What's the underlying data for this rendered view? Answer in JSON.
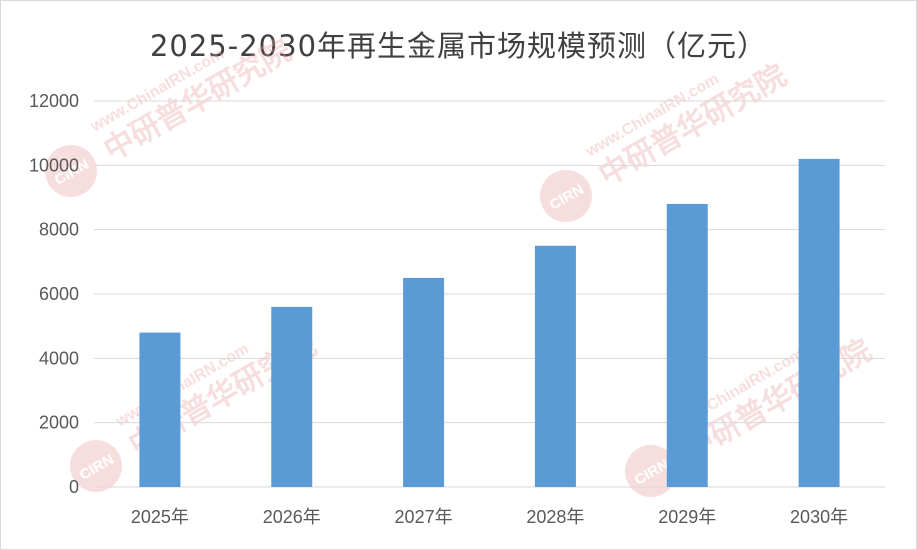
{
  "chart_data": {
    "type": "bar",
    "title": "2025-2030年再生金属市场规模预测（亿元）",
    "categories": [
      "2025年",
      "2026年",
      "2027年",
      "2028年",
      "2029年",
      "2030年"
    ],
    "values": [
      4800,
      5600,
      6500,
      7500,
      8800,
      10200
    ],
    "ylim": [
      0,
      12000
    ],
    "yticks": [
      0,
      2000,
      4000,
      6000,
      8000,
      10000,
      12000
    ],
    "xlabel": "",
    "ylabel": "",
    "grid": true,
    "legend": "none",
    "bar_color": "#5b9bd5"
  },
  "watermark": {
    "url_text": "www.ChinaIRN.com",
    "org_text": "中研普华研究院",
    "logo_text": "CIRN",
    "color": "#e8a0a0"
  }
}
